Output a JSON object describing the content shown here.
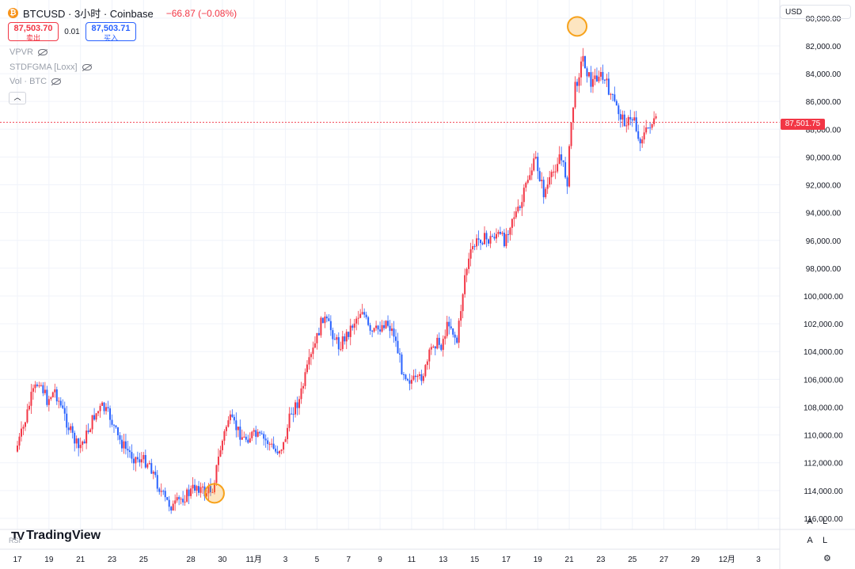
{
  "header": {
    "symbol": "BTCUSD · 3小时 · Coinbase",
    "change": "−66.87 (−0.08%)",
    "sell_price": "87,503.70",
    "sell_label": "卖出",
    "spread": "0.01",
    "buy_price": "87,503.71",
    "buy_label": "买入"
  },
  "indicators": [
    "VPVR",
    "STDFGMA [Loxx]",
    "Vol · BTC"
  ],
  "currency": "USD",
  "last_price": "87,501.75",
  "logo": "TradingView",
  "rsi_label": "RSI",
  "scale_buttons": {
    "auto": "A",
    "log": "L"
  },
  "colors": {
    "up": "#f23645",
    "down": "#2962ff",
    "last_price": "#f23645",
    "highlight": "#f7a21b"
  },
  "icons": {
    "coin": "bitcoin-icon",
    "visibility": "eye-off-icon",
    "collapse": "chevron-up-icon",
    "settings": "gear-icon"
  },
  "chart_data": {
    "type": "candlestick",
    "y_axis_inverted": true,
    "ylim": [
      78700,
      116800
    ],
    "y_ticks": [
      80000,
      82000,
      84000,
      86000,
      88000,
      90000,
      92000,
      94000,
      96000,
      98000,
      100000,
      102000,
      104000,
      106000,
      108000,
      110000,
      112000,
      114000,
      116000
    ],
    "y_tick_labels": [
      "80,000.00",
      "82,000.00",
      "84,000.00",
      "86,000.00",
      "88,000.00",
      "90,000.00",
      "92,000.00",
      "94,000.00",
      "96,000.00",
      "98,000.00",
      "100,000.00",
      "102,000.00",
      "104,000.00",
      "106,000.00",
      "108,000.00",
      "110,000.00",
      "112,000.00",
      "114,000.00",
      "116,000.00"
    ],
    "x_axis": {
      "start": "2025-10-17",
      "end": "2025-12-04",
      "tick_dates": [
        "2025-10-17",
        "2025-10-19",
        "2025-10-21",
        "2025-10-23",
        "2025-10-25",
        "2025-10-28",
        "2025-10-30",
        "2025-11-01",
        "2025-11-03",
        "2025-11-05",
        "2025-11-07",
        "2025-11-09",
        "2025-11-11",
        "2025-11-13",
        "2025-11-15",
        "2025-11-17",
        "2025-11-19",
        "2025-11-21",
        "2025-11-23",
        "2025-11-25",
        "2025-11-27",
        "2025-11-29",
        "2025-12-01",
        "2025-12-03"
      ],
      "tick_labels": [
        "17",
        "19",
        "21",
        "23",
        "25",
        "28",
        "30",
        "11月",
        "3",
        "5",
        "7",
        "9",
        "11",
        "13",
        "15",
        "17",
        "19",
        "21",
        "23",
        "25",
        "27",
        "29",
        "12月",
        "3"
      ]
    },
    "last_price": 87501.75,
    "highlights": [
      {
        "date": "2025-10-29",
        "price": 114200
      },
      {
        "date": "2025-11-21",
        "price": 80600
      }
    ],
    "price_path": [
      [
        "2025-10-17",
        111200
      ],
      [
        "2025-10-17 12:00",
        109500
      ],
      [
        "2025-10-18",
        107300
      ],
      [
        "2025-10-18 12:00",
        106000
      ],
      [
        "2025-10-19",
        107500
      ],
      [
        "2025-10-19 12:00",
        106800
      ],
      [
        "2025-10-20",
        108300
      ],
      [
        "2025-10-20 12:00",
        109800
      ],
      [
        "2025-10-21",
        111000
      ],
      [
        "2025-10-21 12:00",
        110000
      ],
      [
        "2025-10-22",
        108600
      ],
      [
        "2025-10-22 12:00",
        108000
      ],
      [
        "2025-10-23",
        108700
      ],
      [
        "2025-10-23 12:00",
        110200
      ],
      [
        "2025-10-24",
        111000
      ],
      [
        "2025-10-24 12:00",
        111600
      ],
      [
        "2025-10-25",
        111800
      ],
      [
        "2025-10-25 12:00",
        112000
      ],
      [
        "2025-10-26",
        113500
      ],
      [
        "2025-10-26 12:00",
        114700
      ],
      [
        "2025-10-27",
        115200
      ],
      [
        "2025-10-27 12:00",
        114600
      ],
      [
        "2025-10-28",
        114200
      ],
      [
        "2025-10-28 12:00",
        113600
      ],
      [
        "2025-10-29",
        114200
      ],
      [
        "2025-10-29 12:00",
        113800
      ],
      [
        "2025-10-30",
        111000
      ],
      [
        "2025-10-30 12:00",
        108800
      ],
      [
        "2025-10-31",
        109500
      ],
      [
        "2025-10-31 12:00",
        110300
      ],
      [
        "2025-11-01",
        110000
      ],
      [
        "2025-11-01 12:00",
        110200
      ],
      [
        "2025-11-02",
        110500
      ],
      [
        "2025-11-02 12:00",
        111200
      ],
      [
        "2025-11-03",
        110700
      ],
      [
        "2025-11-03 12:00",
        108300
      ],
      [
        "2025-11-04",
        107500
      ],
      [
        "2025-11-04 12:00",
        105300
      ],
      [
        "2025-11-05",
        103500
      ],
      [
        "2025-11-05 12:00",
        101500
      ],
      [
        "2025-11-06",
        102400
      ],
      [
        "2025-11-06 12:00",
        103600
      ],
      [
        "2025-11-07",
        102800
      ],
      [
        "2025-11-07 12:00",
        101800
      ],
      [
        "2025-11-08",
        100900
      ],
      [
        "2025-11-08 12:00",
        102800
      ],
      [
        "2025-11-09",
        102400
      ],
      [
        "2025-11-09 12:00",
        101800
      ],
      [
        "2025-11-10",
        102700
      ],
      [
        "2025-11-10 12:00",
        105200
      ],
      [
        "2025-11-11",
        106000
      ],
      [
        "2025-11-11 12:00",
        106200
      ],
      [
        "2025-11-12",
        105300
      ],
      [
        "2025-11-12 12:00",
        103300
      ],
      [
        "2025-11-13",
        103500
      ],
      [
        "2025-11-13 12:00",
        101800
      ],
      [
        "2025-11-14",
        103300
      ],
      [
        "2025-11-14 12:00",
        98500
      ],
      [
        "2025-11-15",
        96500
      ],
      [
        "2025-11-15 12:00",
        95800
      ],
      [
        "2025-11-16",
        96000
      ],
      [
        "2025-11-16 12:00",
        95500
      ],
      [
        "2025-11-17",
        96000
      ],
      [
        "2025-11-17 12:00",
        94300
      ],
      [
        "2025-11-18",
        93800
      ],
      [
        "2025-11-18 12:00",
        91500
      ],
      [
        "2025-11-19",
        90200
      ],
      [
        "2025-11-19 12:00",
        92600
      ],
      [
        "2025-11-20",
        91500
      ],
      [
        "2025-11-20 12:00",
        89800
      ],
      [
        "2025-11-21",
        91700
      ],
      [
        "2025-11-21 06:00",
        87500
      ],
      [
        "2025-11-21 12:00",
        85000
      ],
      [
        "2025-11-22",
        82800
      ],
      [
        "2025-11-22 06:00",
        83800
      ],
      [
        "2025-11-22 12:00",
        84700
      ],
      [
        "2025-11-23",
        84000
      ],
      [
        "2025-11-23 12:00",
        84800
      ],
      [
        "2025-11-24",
        86200
      ],
      [
        "2025-11-24 12:00",
        87300
      ],
      [
        "2025-11-25",
        87500
      ],
      [
        "2025-11-25 06:00",
        87000
      ],
      [
        "2025-11-25 12:00",
        88800
      ],
      [
        "2025-11-26",
        88200
      ],
      [
        "2025-11-26 06:00",
        87600
      ],
      [
        "2025-11-26 12:00",
        87500
      ]
    ]
  }
}
